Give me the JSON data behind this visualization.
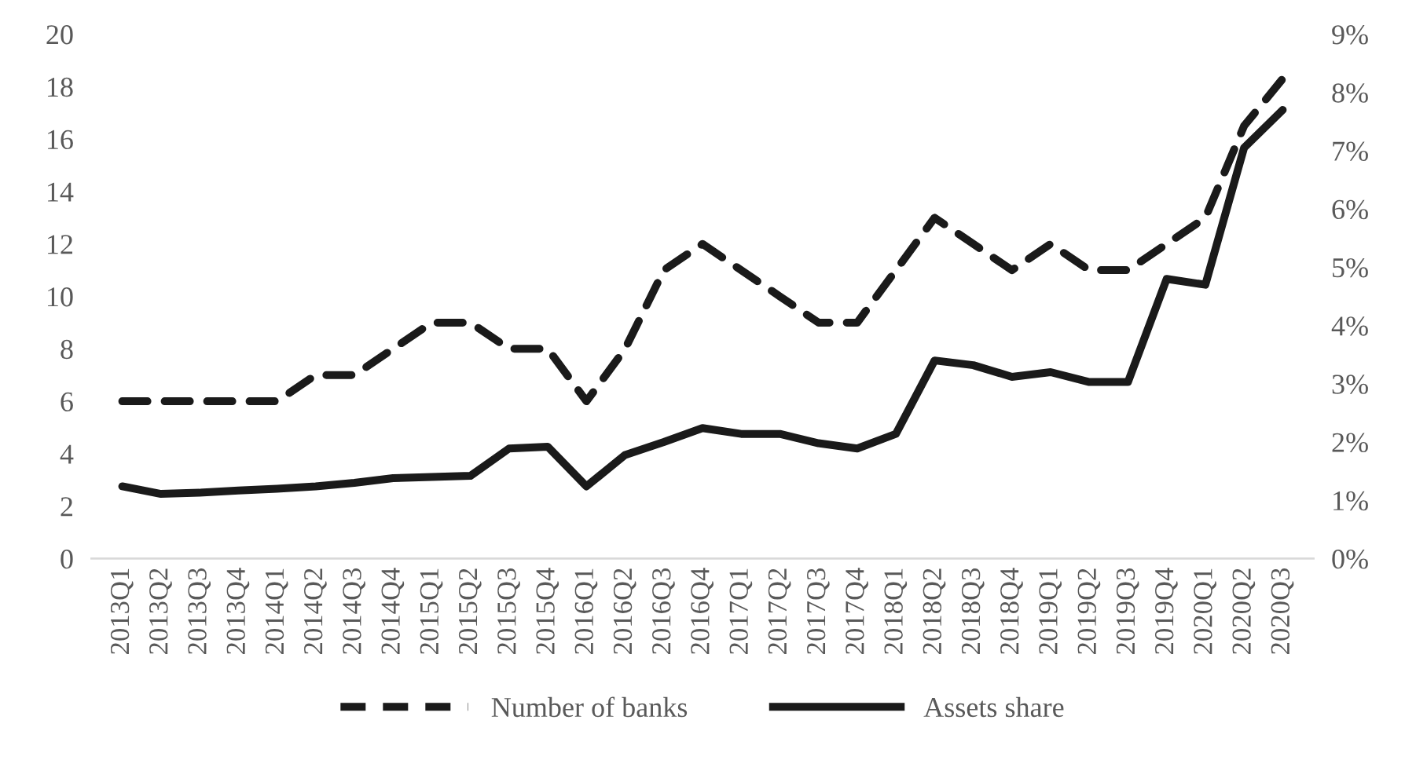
{
  "chart_data": {
    "type": "line",
    "categories": [
      "2013Q1",
      "2013Q2",
      "2013Q3",
      "2013Q4",
      "2014Q1",
      "2014Q2",
      "2014Q3",
      "2014Q4",
      "2015Q1",
      "2015Q2",
      "2015Q3",
      "2015Q4",
      "2016Q1",
      "2016Q2",
      "2016Q3",
      "2016Q4",
      "2017Q1",
      "2017Q2",
      "2017Q3",
      "2017Q4",
      "2018Q1",
      "2018Q2",
      "2018Q3",
      "2018Q4",
      "2019Q1",
      "2019Q2",
      "2019Q3",
      "2019Q4",
      "2020Q1",
      "2020Q2",
      "2020Q3"
    ],
    "series": [
      {
        "name": "Number of banks",
        "color": "#1a1a1a",
        "line_style": "dashed",
        "values": [
          6,
          6,
          6,
          6,
          6,
          7,
          7,
          8,
          9,
          9,
          8,
          8,
          6,
          8,
          11,
          12,
          11,
          10,
          9,
          9,
          11,
          13,
          12,
          11,
          12,
          11,
          11,
          12,
          13,
          16.5,
          18.3
        ]
      },
      {
        "name": "Assets share",
        "color": "#1a1a1a",
        "line_style": "solid",
        "axis": "y2",
        "values": [
          1.24,
          1.11,
          1.13,
          1.17,
          1.2,
          1.24,
          1.3,
          1.38,
          1.4,
          1.42,
          1.89,
          1.92,
          1.24,
          1.78,
          2.0,
          2.24,
          2.14,
          2.14,
          1.98,
          1.89,
          2.14,
          3.4,
          3.32,
          3.12,
          3.2,
          3.03,
          3.03,
          4.8,
          4.7,
          7.05,
          7.7
        ]
      }
    ],
    "ylim": [
      0,
      20
    ],
    "yticks": [
      0,
      2,
      4,
      6,
      8,
      10,
      12,
      14,
      16,
      18,
      20
    ],
    "y2lim": [
      0,
      9
    ],
    "y2ticks": [
      {
        "value": 0,
        "label": "0%"
      },
      {
        "value": 1,
        "label": "1%"
      },
      {
        "value": 2,
        "label": "2%"
      },
      {
        "value": 3,
        "label": "3%"
      },
      {
        "value": 4,
        "label": "4%"
      },
      {
        "value": 5,
        "label": "5%"
      },
      {
        "value": 6,
        "label": "6%"
      },
      {
        "value": 7,
        "label": "7%"
      },
      {
        "value": 8,
        "label": "8%"
      },
      {
        "value": 9,
        "label": "9%"
      }
    ],
    "grid": false,
    "legend": "bottom",
    "marker": "none"
  }
}
